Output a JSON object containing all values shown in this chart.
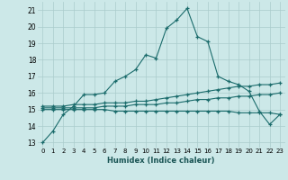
{
  "xlabel": "Humidex (Indice chaleur)",
  "ylabel": "",
  "background_color": "#cce8e8",
  "grid_color": "#aacccc",
  "line_color": "#1a6b6b",
  "xlim": [
    -0.5,
    23.5
  ],
  "ylim": [
    12.7,
    21.5
  ],
  "yticks": [
    13,
    14,
    15,
    16,
    17,
    18,
    19,
    20,
    21
  ],
  "xticks": [
    0,
    1,
    2,
    3,
    4,
    5,
    6,
    7,
    8,
    9,
    10,
    11,
    12,
    13,
    14,
    15,
    16,
    17,
    18,
    19,
    20,
    21,
    22,
    23
  ],
  "series": [
    {
      "x": [
        0,
        1,
        2,
        3,
        4,
        5,
        6,
        7,
        8,
        9,
        10,
        11,
        12,
        13,
        14,
        15,
        16,
        17,
        18,
        19,
        20,
        21,
        22,
        23
      ],
      "y": [
        13.0,
        13.7,
        14.7,
        15.2,
        15.9,
        15.9,
        16.0,
        16.7,
        17.0,
        17.4,
        18.3,
        18.1,
        19.9,
        20.4,
        21.1,
        19.4,
        19.1,
        17.0,
        16.7,
        16.5,
        16.1,
        14.9,
        14.1,
        14.7
      ]
    },
    {
      "x": [
        0,
        1,
        2,
        3,
        4,
        5,
        6,
        7,
        8,
        9,
        10,
        11,
        12,
        13,
        14,
        15,
        16,
        17,
        18,
        19,
        20,
        21,
        22,
        23
      ],
      "y": [
        15.2,
        15.2,
        15.2,
        15.3,
        15.3,
        15.3,
        15.4,
        15.4,
        15.4,
        15.5,
        15.5,
        15.6,
        15.7,
        15.8,
        15.9,
        16.0,
        16.1,
        16.2,
        16.3,
        16.4,
        16.4,
        16.5,
        16.5,
        16.6
      ]
    },
    {
      "x": [
        0,
        1,
        2,
        3,
        4,
        5,
        6,
        7,
        8,
        9,
        10,
        11,
        12,
        13,
        14,
        15,
        16,
        17,
        18,
        19,
        20,
        21,
        22,
        23
      ],
      "y": [
        15.1,
        15.1,
        15.1,
        15.1,
        15.1,
        15.1,
        15.2,
        15.2,
        15.2,
        15.3,
        15.3,
        15.3,
        15.4,
        15.4,
        15.5,
        15.6,
        15.6,
        15.7,
        15.7,
        15.8,
        15.8,
        15.9,
        15.9,
        16.0
      ]
    },
    {
      "x": [
        0,
        1,
        2,
        3,
        4,
        5,
        6,
        7,
        8,
        9,
        10,
        11,
        12,
        13,
        14,
        15,
        16,
        17,
        18,
        19,
        20,
        21,
        22,
        23
      ],
      "y": [
        15.0,
        15.0,
        15.0,
        15.0,
        15.0,
        15.0,
        15.0,
        14.9,
        14.9,
        14.9,
        14.9,
        14.9,
        14.9,
        14.9,
        14.9,
        14.9,
        14.9,
        14.9,
        14.9,
        14.8,
        14.8,
        14.8,
        14.8,
        14.7
      ]
    }
  ]
}
